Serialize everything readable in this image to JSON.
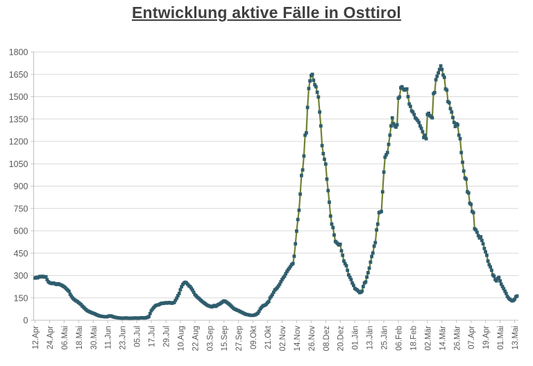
{
  "title": "Entwicklung aktive Fälle in Osttirol",
  "chart_data": {
    "type": "line",
    "title": "Entwicklung aktive Fälle in Osttirol",
    "legend": "none",
    "grid": "horizontal",
    "ylim": [
      0,
      1800
    ],
    "y_ticks": [
      0,
      150,
      300,
      450,
      600,
      750,
      900,
      1050,
      1200,
      1350,
      1500,
      1650,
      1800
    ],
    "x_tick_interval_days": 12,
    "x_tick_labels": [
      "12.Apr",
      "24.Apr",
      "06.Mai",
      "18.Mai",
      "30.Mai",
      "11.Jun",
      "23.Jun",
      "05.Jul",
      "17.Jul",
      "29.Jul",
      "10.Aug",
      "22.Aug",
      "03.Sep",
      "15.Sep",
      "27.Sep",
      "09.Okt",
      "21.Okt",
      "02.Nov",
      "14.Nov",
      "26.Nov",
      "08.Dez",
      "20.Dez",
      "01.Jän",
      "13.Jän",
      "25.Jän",
      "06.Feb",
      "18.Feb",
      "02.Mär",
      "14.Mär",
      "26.Mär",
      "07.Apr",
      "19.Apr",
      "01.Mai",
      "13.Mai"
    ],
    "series": [
      {
        "name": "aktive Fälle",
        "values": [
          283,
          288,
          284,
          290,
          294,
          291,
          295,
          293,
          290,
          292,
          272,
          258,
          252,
          249,
          246,
          250,
          247,
          243,
          240,
          245,
          242,
          238,
          235,
          230,
          225,
          218,
          210,
          202,
          194,
          175,
          162,
          150,
          142,
          135,
          130,
          125,
          118,
          112,
          105,
          95,
          88,
          80,
          72,
          65,
          61,
          57,
          53,
          50,
          47,
          44,
          40,
          36,
          33,
          30,
          28,
          26,
          25,
          24,
          23,
          23,
          25,
          28,
          30,
          28,
          25,
          22,
          20,
          18,
          17,
          16,
          15,
          15,
          14,
          14,
          15,
          16,
          15,
          14,
          13,
          14,
          15,
          14,
          15,
          16,
          15,
          14,
          15,
          16,
          17,
          16,
          15,
          16,
          18,
          20,
          25,
          45,
          64,
          75,
          85,
          94,
          100,
          102,
          104,
          108,
          112,
          115,
          113,
          116,
          118,
          115,
          117,
          119,
          116,
          114,
          117,
          120,
          134,
          149,
          165,
          180,
          205,
          225,
          240,
          250,
          255,
          251,
          242,
          232,
          226,
          215,
          203,
          188,
          172,
          164,
          155,
          149,
          141,
          133,
          126,
          120,
          114,
          108,
          102,
          98,
          95,
          92,
          90,
          95,
          99,
          93,
          97,
          104,
          108,
          112,
          118,
          124,
          130,
          127,
          122,
          116,
          110,
          103,
          95,
          87,
          79,
          75,
          71,
          67,
          64,
          60,
          56,
          52,
          48,
          44,
          40,
          38,
          37,
          35,
          33,
          33,
          33,
          35,
          37,
          42,
          48,
          60,
          76,
          86,
          95,
          99,
          102,
          108,
          118,
          126,
          149,
          160,
          172,
          188,
          203,
          210,
          218,
          230,
          242,
          258,
          273,
          285,
          296,
          312,
          327,
          339,
          350,
          362,
          374,
          381,
          430,
          513,
          598,
          676,
          738,
          846,
          971,
          1009,
          1102,
          1242,
          1257,
          1428,
          1555,
          1606,
          1642,
          1650,
          1610,
          1580,
          1567,
          1530,
          1498,
          1397,
          1304,
          1172,
          1118,
          1080,
          1048,
          947,
          870,
          792,
          699,
          645,
          622,
          572,
          529,
          521,
          513,
          505,
          510,
          466,
          436,
          397,
          380,
          366,
          335,
          304,
          288,
          273,
          250,
          234,
          214,
          208,
          203,
          195,
          185,
          188,
          195,
          226,
          250,
          257,
          290,
          319,
          350,
          390,
          428,
          451,
          497,
          521,
          606,
          645,
          722,
          726,
          730,
          862,
          994,
          1094,
          1110,
          1125,
          1180,
          1242,
          1304,
          1358,
          1319,
          1304,
          1296,
          1311,
          1490,
          1498,
          1560,
          1567,
          1552,
          1544,
          1548,
          1552,
          1500,
          1451,
          1435,
          1405,
          1397,
          1381,
          1358,
          1350,
          1340,
          1327,
          1304,
          1288,
          1265,
          1226,
          1242,
          1218,
          1381,
          1389,
          1373,
          1366,
          1358,
          1521,
          1528,
          1614,
          1637,
          1660,
          1683,
          1707,
          1683,
          1645,
          1630,
          1552,
          1544,
          1467,
          1459,
          1420,
          1397,
          1360,
          1327,
          1300,
          1319,
          1311,
          1242,
          1218,
          1125,
          1060,
          1001,
          955,
          947,
          862,
          854,
          785,
          777,
          730,
          722,
          614,
          606,
          591,
          568,
          552,
          560,
          536,
          513,
          482,
          459,
          436,
          397,
          373,
          358,
          335,
          304,
          296,
          273,
          264,
          280,
          288,
          264,
          242,
          226,
          211,
          195,
          180,
          160,
          149,
          141,
          136,
          130,
          133,
          141,
          157,
          163
        ]
      }
    ],
    "colors": {
      "line": "#6E8232",
      "marker": "#2F5D6D",
      "grid": "#D9D9D9",
      "axis": "#BFBFBF",
      "tick_text": "#595959",
      "title_text": "#3F3F3F",
      "background": "#FFFFFF"
    }
  }
}
